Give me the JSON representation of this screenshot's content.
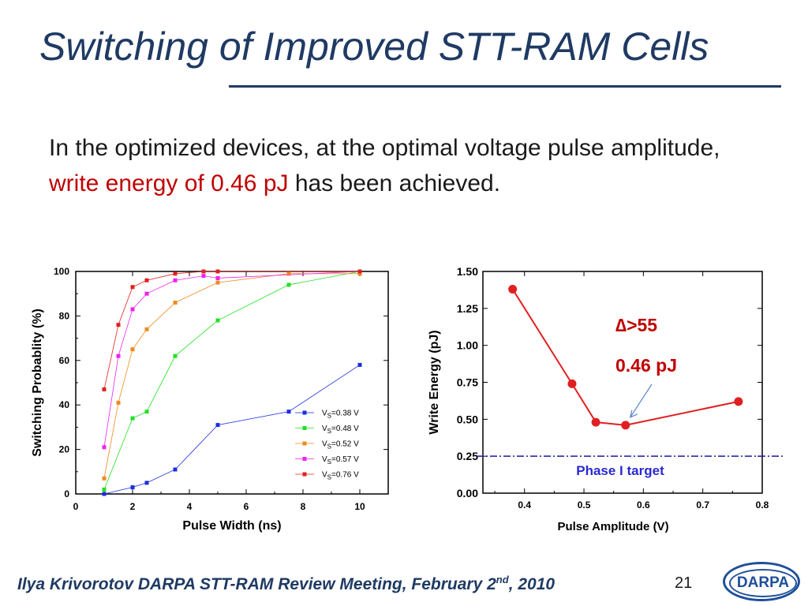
{
  "slide": {
    "title": "Switching of Improved STT-RAM Cells",
    "body_part1": "In the optimized devices, at the optimal voltage pulse amplitude, ",
    "body_highlight": "write energy of 0.46 pJ",
    "body_part2": " has been achieved.",
    "footer_main": "Ilya Krivorotov  DARPA STT-RAM Review Meeting, February 2",
    "footer_sup": "nd",
    "footer_end": ", 2010",
    "page_number": "21",
    "logo_text": "DARPA"
  },
  "colors": {
    "title": "#1f3a63",
    "highlight": "#c00000"
  },
  "chart_data": [
    {
      "type": "line",
      "xlabel": "Pulse Width (ns)",
      "ylabel": "Switching Probablity (%)",
      "xlim": [
        0,
        11
      ],
      "ylim": [
        0,
        100
      ],
      "xticks": [
        0,
        2,
        4,
        6,
        8,
        10
      ],
      "yticks": [
        0,
        20,
        40,
        60,
        80,
        100
      ],
      "legend_position": "bottom-right",
      "series": [
        {
          "name": "V",
          "sub": "S",
          "suffix": "=0.38 V",
          "color": "#1a2ee0",
          "x": [
            1,
            2,
            2.5,
            3.5,
            5,
            7.5,
            10
          ],
          "y": [
            0,
            3,
            5,
            11,
            31,
            37,
            58
          ]
        },
        {
          "name": "V",
          "sub": "S",
          "suffix": "=0.48 V",
          "color": "#22e022",
          "x": [
            1,
            2,
            2.5,
            3.5,
            5,
            7.5,
            10
          ],
          "y": [
            2,
            34,
            37,
            62,
            78,
            94,
            100
          ]
        },
        {
          "name": "V",
          "sub": "S",
          "suffix": "=0.52 V",
          "color": "#f08a1e",
          "x": [
            1,
            1.5,
            2,
            2.5,
            3.5,
            5,
            7.5,
            10
          ],
          "y": [
            7,
            41,
            65,
            74,
            86,
            95,
            99,
            99
          ]
        },
        {
          "name": "V",
          "sub": "S",
          "suffix": "=0.57 V",
          "color": "#ee22ee",
          "x": [
            1,
            1.5,
            2,
            2.5,
            3.5,
            4.5,
            5,
            10
          ],
          "y": [
            21,
            62,
            83,
            90,
            96,
            98,
            97,
            100
          ]
        },
        {
          "name": "V",
          "sub": "S",
          "suffix": "=0.76 V",
          "color": "#e02020",
          "x": [
            1,
            1.5,
            2,
            2.5,
            3.5,
            4.5,
            5,
            10
          ],
          "y": [
            47,
            76,
            93,
            96,
            99,
            100,
            100,
            100
          ]
        }
      ]
    },
    {
      "type": "line",
      "xlabel": "Pulse Amplitude (V)",
      "ylabel": "Write Energy (pJ)",
      "xlim": [
        0.33,
        0.8
      ],
      "ylim": [
        0,
        1.5
      ],
      "xticks": [
        0.4,
        0.5,
        0.6,
        0.7,
        0.8
      ],
      "xtick_labels": [
        "0.4",
        "0.5",
        "0.6",
        "0.7",
        "0.8"
      ],
      "yticks": [
        0,
        0.25,
        0.5,
        0.75,
        1.0,
        1.25,
        1.5
      ],
      "ytick_labels": [
        "0.00",
        "0.25",
        "0.50",
        "0.75",
        "1.00",
        "1.25",
        "1.50"
      ],
      "series": [
        {
          "name": "",
          "color": "#e02020",
          "x": [
            0.38,
            0.48,
            0.52,
            0.57,
            0.76
          ],
          "y": [
            1.38,
            0.74,
            0.48,
            0.46,
            0.62
          ]
        }
      ],
      "reference_line": {
        "y": 0.25,
        "label": "Phase I target",
        "color": "#1a1aa0"
      },
      "annotations": [
        {
          "symbol": "∆",
          "text": ">55"
        },
        {
          "text": "0.46 pJ",
          "points_to": {
            "x": 0.57,
            "y": 0.46
          }
        }
      ]
    }
  ]
}
